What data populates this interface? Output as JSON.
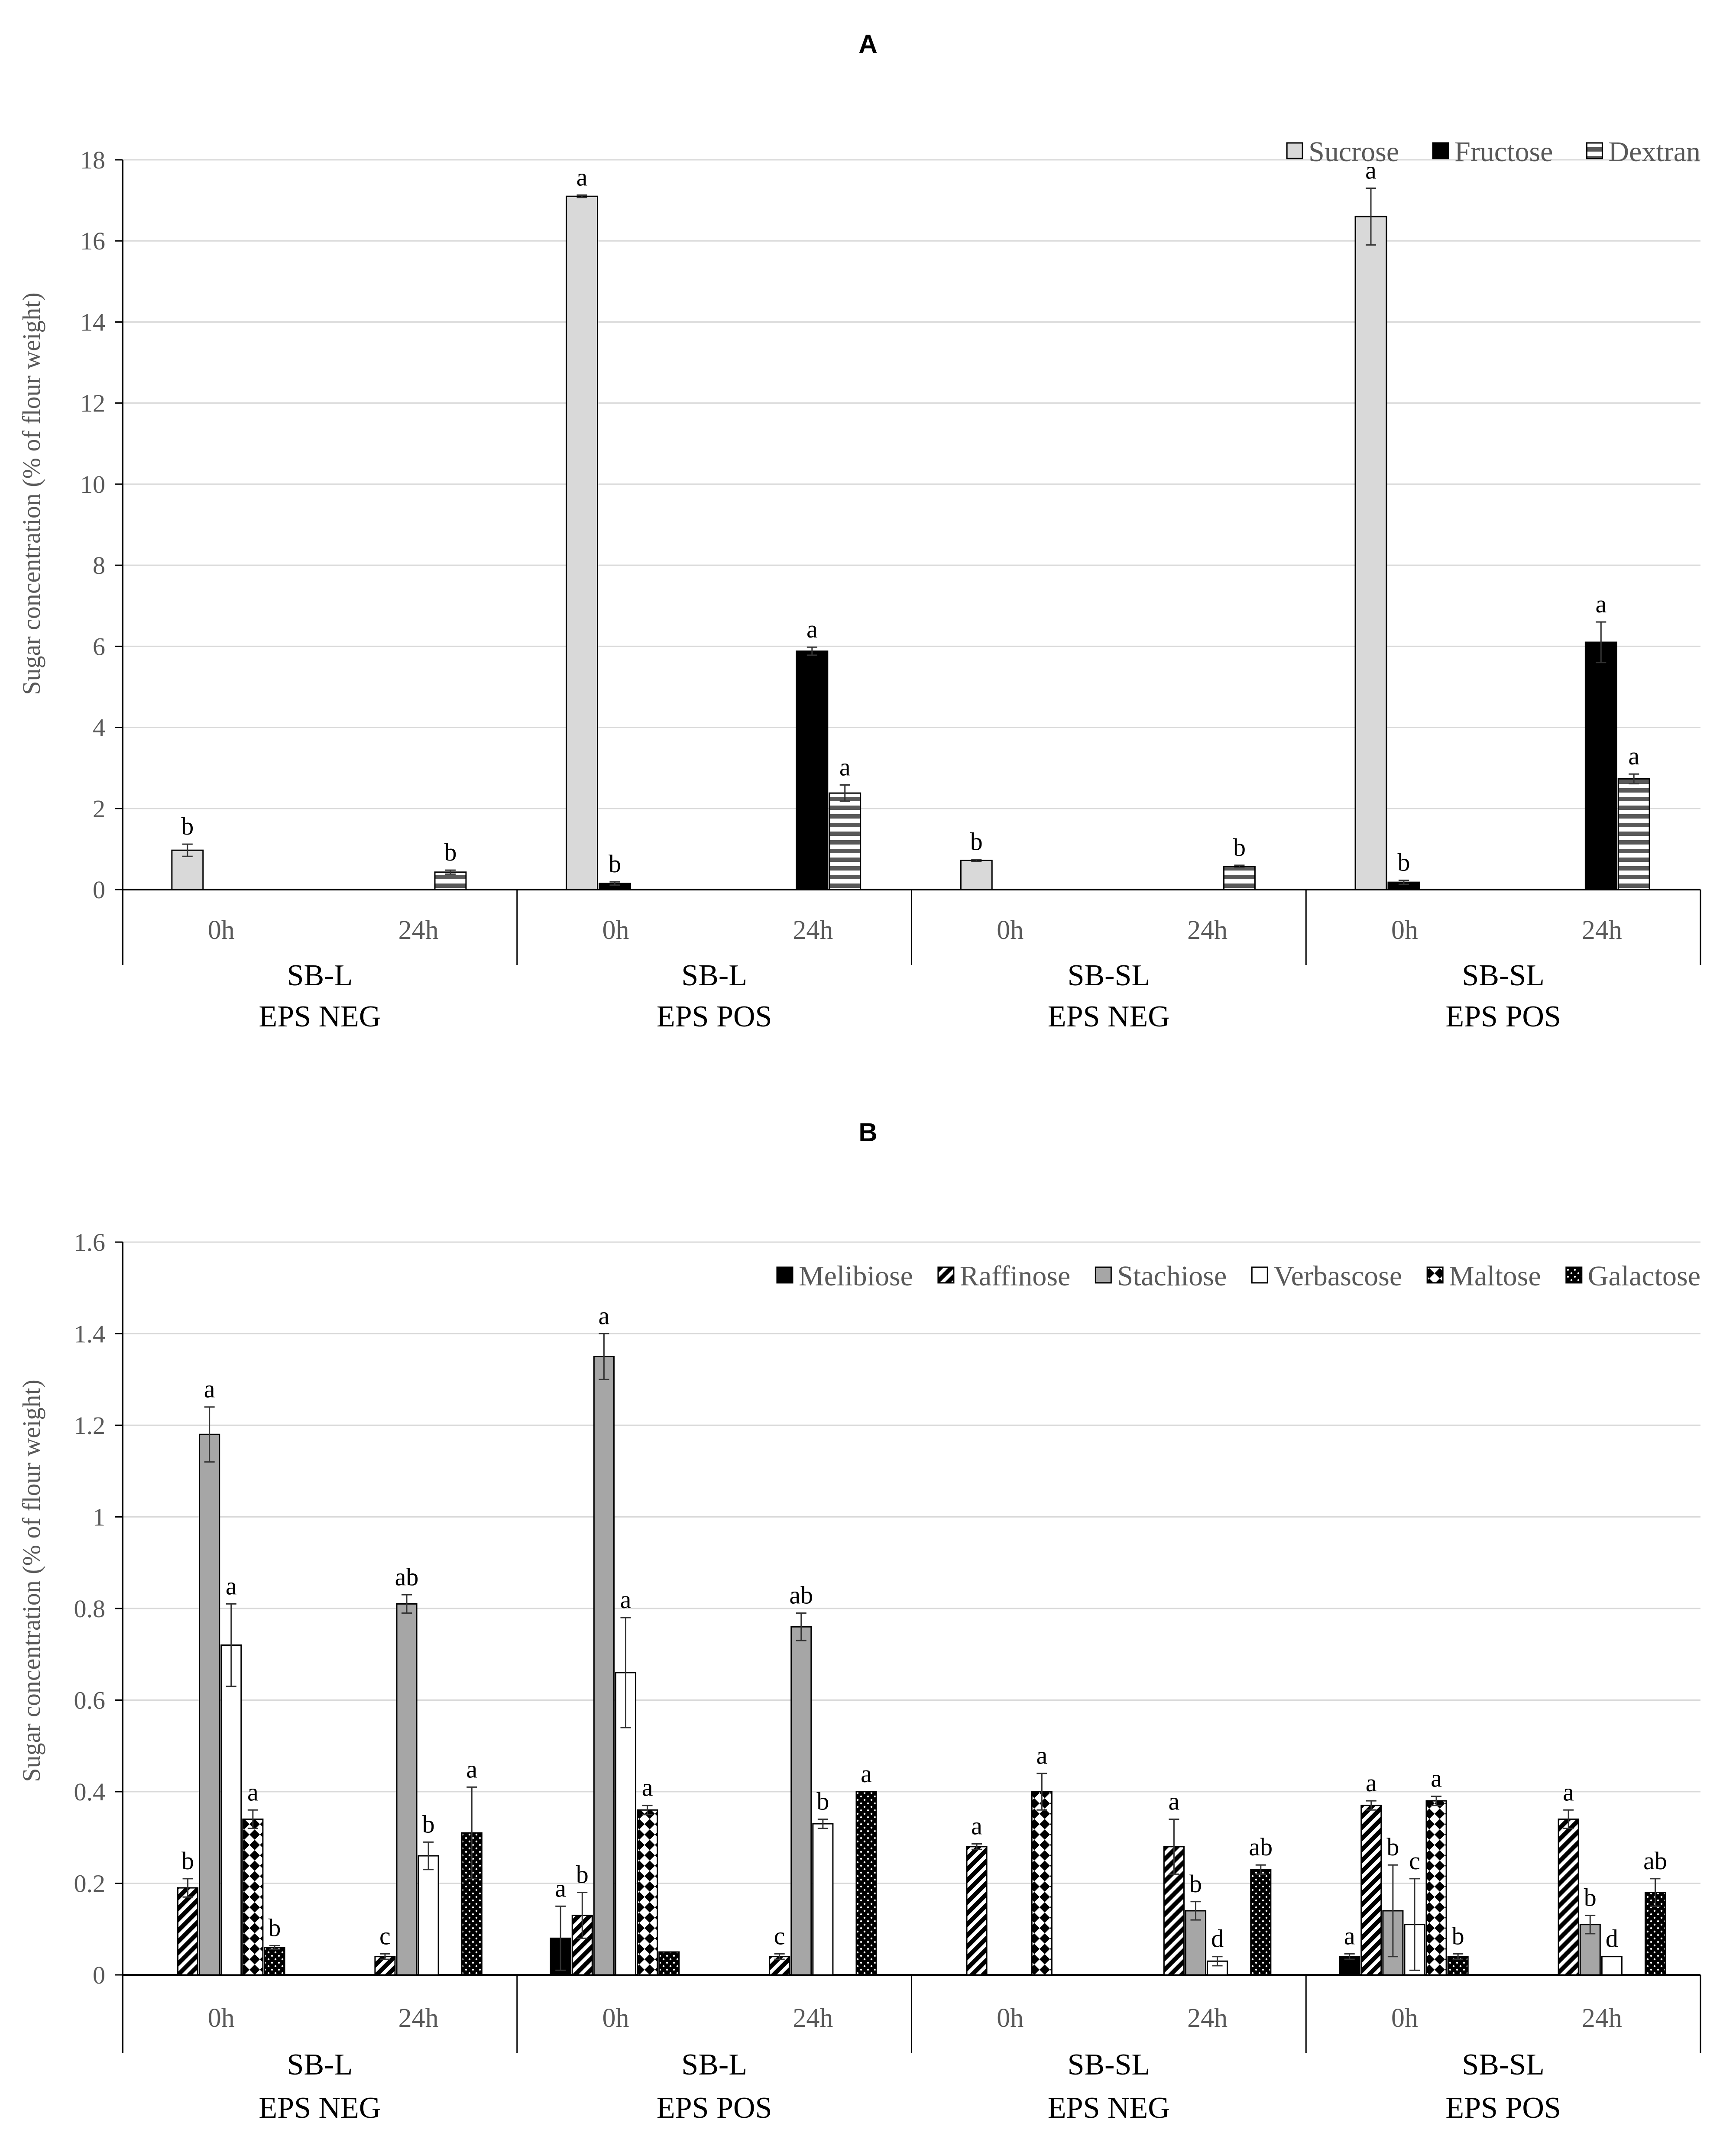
{
  "colors": {
    "sucrose": "#d9d9d9",
    "fructose": "#000000",
    "dextran": "#595959",
    "melibiose": "#000000",
    "raffinose": "#000000",
    "stachiose": "#a6a6a6",
    "verbascose": "#ffffff",
    "maltose": "#000000",
    "galactose": "#000000",
    "grid": "#d9d9d9",
    "axis": "#000000",
    "text_grey": "#595959"
  },
  "chart_data": [
    {
      "panel": "A",
      "type": "bar",
      "title": "A",
      "ylabel": "Sugar concentration (% of flour weight)",
      "xlabel": "",
      "ylim": [
        0,
        18
      ],
      "yticks": [
        0,
        2,
        4,
        6,
        8,
        10,
        12,
        14,
        16,
        18
      ],
      "tick_labels": [
        "0",
        "2",
        "4",
        "6",
        "8",
        "10",
        "12",
        "14",
        "16",
        "18"
      ],
      "grid": true,
      "legend_position": "top-right",
      "groups": [
        {
          "line1": "SB-L",
          "line2": "EPS NEG"
        },
        {
          "line1": "SB-L",
          "line2": "EPS POS"
        },
        {
          "line1": "SB-SL",
          "line2": "EPS NEG"
        },
        {
          "line1": "SB-SL",
          "line2": "EPS POS"
        }
      ],
      "times": [
        "0h",
        "24h"
      ],
      "series": [
        {
          "name": "Sucrose",
          "pattern": "sucrose",
          "values": [
            0.97,
            null,
            17.1,
            null,
            0.72,
            null,
            16.6,
            null
          ],
          "errors": [
            0.15,
            null,
            0.03,
            null,
            0.02,
            null,
            0.7,
            null
          ],
          "letters": [
            "b",
            "",
            "a",
            "",
            "b",
            "",
            "a",
            ""
          ]
        },
        {
          "name": "Fructose",
          "pattern": "fructose",
          "values": [
            null,
            null,
            0.15,
            5.88,
            null,
            null,
            0.18,
            6.1
          ],
          "errors": [
            null,
            null,
            0.04,
            0.1,
            null,
            null,
            0.05,
            0.5
          ],
          "letters": [
            "",
            "",
            "b",
            "a",
            "",
            "",
            "b",
            "a"
          ]
        },
        {
          "name": "Dextran",
          "pattern": "dextran",
          "values": [
            null,
            0.43,
            null,
            2.38,
            null,
            0.57,
            null,
            2.73
          ],
          "errors": [
            null,
            0.05,
            null,
            0.2,
            null,
            0.03,
            null,
            0.12
          ],
          "letters": [
            "",
            "b",
            "",
            "a",
            "",
            "b",
            "",
            "a"
          ]
        }
      ]
    },
    {
      "panel": "B",
      "type": "bar",
      "title": "B",
      "ylabel": "Sugar concentration (% of flour weight)",
      "xlabel": "",
      "ylim": [
        0,
        1.6
      ],
      "yticks": [
        0,
        0.2,
        0.4,
        0.6,
        0.8,
        1.0,
        1.2,
        1.4,
        1.6
      ],
      "tick_labels": [
        "0",
        "0.2",
        "0.4",
        "0.6",
        "0.8",
        "1",
        "1.2",
        "1.4",
        "1.6"
      ],
      "grid": true,
      "legend_position": "top-right",
      "groups": [
        {
          "line1": "SB-L",
          "line2": "EPS NEG"
        },
        {
          "line1": "SB-L",
          "line2": "EPS POS"
        },
        {
          "line1": "SB-SL",
          "line2": "EPS NEG"
        },
        {
          "line1": "SB-SL",
          "line2": "EPS POS"
        }
      ],
      "times": [
        "0h",
        "24h"
      ],
      "series": [
        {
          "name": "Melibiose",
          "pattern": "melibiose",
          "values": [
            null,
            null,
            0.08,
            null,
            null,
            null,
            0.04,
            null
          ],
          "errors": [
            null,
            null,
            0.07,
            null,
            null,
            null,
            0.006,
            null
          ],
          "letters": [
            "",
            "",
            "a",
            "",
            "",
            "",
            "a",
            ""
          ]
        },
        {
          "name": "Raffinose",
          "pattern": "raffinose",
          "values": [
            0.19,
            0.04,
            0.13,
            0.04,
            0.28,
            0.28,
            0.37,
            0.34
          ],
          "errors": [
            0.02,
            0.006,
            0.05,
            0.006,
            0.006,
            0.06,
            0.01,
            0.02
          ],
          "letters": [
            "b",
            "c",
            "b",
            "c",
            "a",
            "a",
            "a",
            "a"
          ]
        },
        {
          "name": "Stachiose",
          "pattern": "stachiose",
          "values": [
            1.18,
            0.81,
            1.35,
            0.76,
            null,
            0.14,
            0.14,
            0.11
          ],
          "errors": [
            0.06,
            0.02,
            0.05,
            0.03,
            null,
            0.02,
            0.1,
            0.02
          ],
          "letters": [
            "a",
            "ab",
            "a",
            "ab",
            "",
            "b",
            "b",
            "b"
          ]
        },
        {
          "name": "Verbascose",
          "pattern": "verbascose",
          "values": [
            0.72,
            0.26,
            0.66,
            0.33,
            null,
            0.03,
            0.11,
            0.04
          ],
          "errors": [
            0.09,
            0.03,
            0.12,
            0.01,
            null,
            0.01,
            0.1,
            null
          ],
          "letters": [
            "a",
            "b",
            "a",
            "b",
            "",
            "d",
            "c",
            "d"
          ]
        },
        {
          "name": "Maltose",
          "pattern": "maltose",
          "values": [
            0.34,
            null,
            0.36,
            null,
            0.4,
            null,
            0.38,
            null
          ],
          "errors": [
            0.02,
            null,
            0.01,
            null,
            0.04,
            null,
            0.01,
            null
          ],
          "letters": [
            "a",
            "",
            "a",
            "",
            "a",
            "",
            "a",
            ""
          ]
        },
        {
          "name": "Galactose",
          "pattern": "galactose",
          "values": [
            0.06,
            0.31,
            0.05,
            0.4,
            null,
            0.23,
            0.04,
            0.18
          ],
          "errors": [
            0.004,
            0.1,
            null,
            null,
            null,
            0.01,
            0.006,
            0.03
          ],
          "letters": [
            "b",
            "a",
            "",
            "a",
            "",
            "ab",
            "b",
            "ab"
          ]
        }
      ]
    }
  ]
}
